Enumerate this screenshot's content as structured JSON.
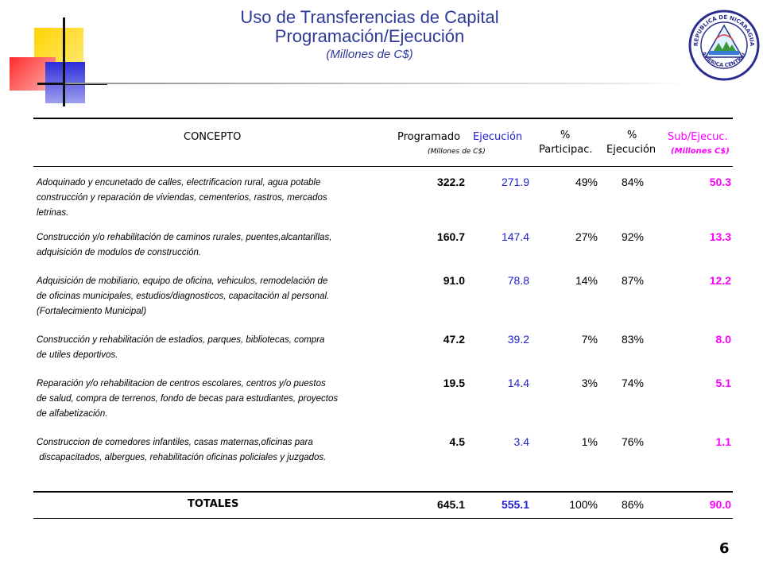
{
  "title": {
    "line1": "Uso de Transferencias de Capital",
    "line2": "Programación/Ejecución",
    "line3": "(Millones de C$)"
  },
  "seal": {
    "outer_text": "REPUBLICA DE NICARAGUA",
    "lower_text": "AMERICA CENTRAL"
  },
  "colors": {
    "title": "#2d3a99",
    "ejecucion": "#2020cc",
    "subejec": "#ff00ff"
  },
  "table": {
    "headers": {
      "concepto": "CONCEPTO",
      "programado": "Programado",
      "ejecucion": "Ejecución",
      "millones": "(Millones  de  C$)",
      "part_pct": "%",
      "part_label": "Participac.",
      "ejec_pct": "%",
      "ejec_label": "Ejecución",
      "sub_label": "Sub/Ejecuc.",
      "sub_units": "(Millones C$)"
    },
    "rows": [
      {
        "lines": [
          "Adoquinado y encunetado de calles, electrificacion rural, agua potable",
          "construcción y reparación de viviendas, cementerios, rastros, mercados",
          "letrinas."
        ],
        "programado": "322.2",
        "ejecucion": "271.9",
        "participacion": "49%",
        "ejecucion_pct": "84%",
        "subejecucion": "50.3"
      },
      {
        "lines": [
          "Construcción y/o rehabilitación de caminos rurales, puentes,alcantarillas,",
          "adquisición de modulos de construcción."
        ],
        "programado": "160.7",
        "ejecucion": "147.4",
        "participacion": "27%",
        "ejecucion_pct": "92%",
        "subejecucion": "13.3"
      },
      {
        "lines": [
          "Adquisición de mobiliario, equipo de oficina, vehiculos, remodelación de",
          "de oficinas municipales, estudios/diagnosticos, capacitación al personal.",
          "(Fortalecimiento Municipal)"
        ],
        "programado": "91.0",
        "ejecucion": "78.8",
        "participacion": "14%",
        "ejecucion_pct": "87%",
        "subejecucion": "12.2"
      },
      {
        "lines": [
          "Construcción y rehabilitación de estadios, parques, bibliotecas, compra",
          "de utiles deportivos."
        ],
        "programado": "47.2",
        "ejecucion": "39.2",
        "participacion": "7%",
        "ejecucion_pct": "83%",
        "subejecucion": "8.0"
      },
      {
        "lines": [
          "Reparación y/o rehabilitacion de centros escolares, centros y/o puestos",
          "de salud, compra de terrenos, fondo de becas para estudiantes, proyectos",
          "de alfabetización."
        ],
        "programado": "19.5",
        "ejecucion": "14.4",
        "participacion": "3%",
        "ejecucion_pct": "74%",
        "subejecucion": "5.1"
      },
      {
        "lines": [
          "Construccion de comedores infantiles, casas maternas,oficinas para",
          " discapacitados, albergues, rehabilitación oficinas policiales y juzgados."
        ],
        "programado": "4.5",
        "ejecucion": "3.4",
        "participacion": "1%",
        "ejecucion_pct": "76%",
        "subejecucion": "1.1"
      }
    ],
    "totals": {
      "label": "TOTALES",
      "programado": "645.1",
      "ejecucion": "555.1",
      "participacion": "100%",
      "ejecucion_pct": "86%",
      "subejecucion": "90.0"
    }
  },
  "page_number": "6"
}
